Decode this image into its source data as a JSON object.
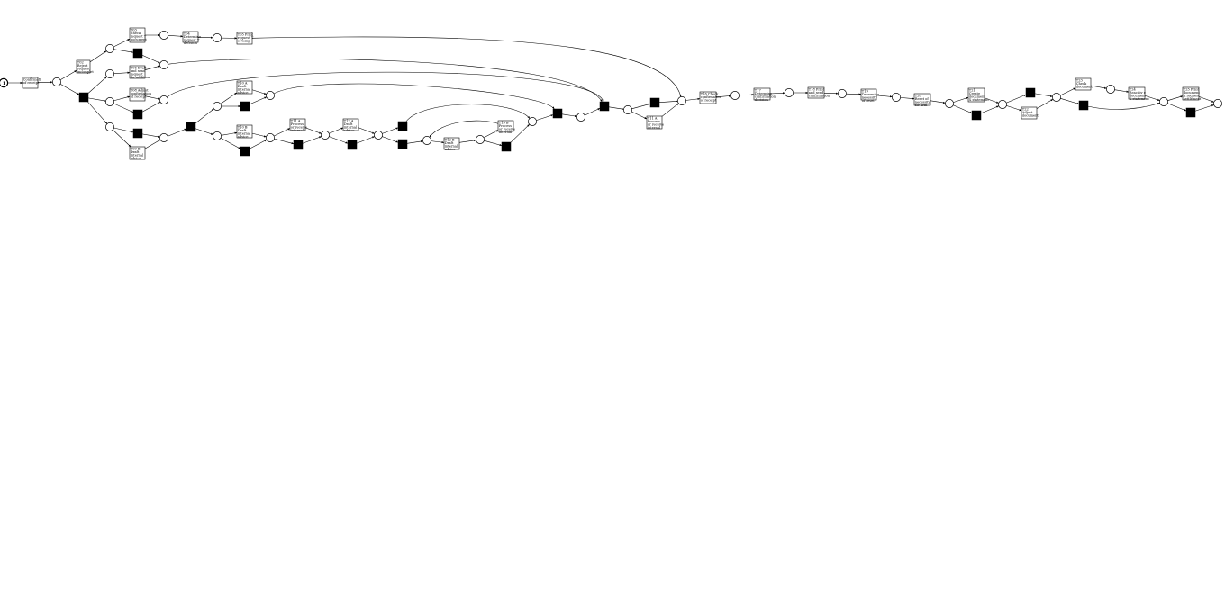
{
  "diagram": {
    "type": "petri-net",
    "token_count": "1",
    "transitions": [
      {
        "id": "t_start",
        "lines": [
          "Confirmati",
          "of receipt"
        ]
      },
      {
        "id": "t_reject",
        "lines": [
          "T02",
          "Reject",
          "request",
          "incomplet"
        ]
      },
      {
        "id": "t_check_t",
        "lines": [
          "T03",
          "Check",
          "request T",
          "document"
        ]
      },
      {
        "id": "t_det_t",
        "lines": [
          "T04",
          "Determine",
          "request T",
          "decision"
        ]
      },
      {
        "id": "t_print_t",
        "lines": [
          "T05 Print",
          "request T",
          "of temp"
        ]
      },
      {
        "id": "t_draft_a",
        "lines": [
          "T06 Draft",
          "and send",
          "request",
          "for addition"
        ]
      },
      {
        "id": "t_adjust_conf",
        "lines": [
          "T08 Adjust",
          "confirmation",
          "of receipt"
        ]
      },
      {
        "id": "t_draft_b",
        "lines": [
          "T09 B",
          "Draft",
          "internal",
          "advice"
        ]
      },
      {
        "id": "t_t10a",
        "lines": [
          "T10 A",
          "Draft",
          "internal",
          "advice"
        ]
      },
      {
        "id": "t_t10b",
        "lines": [
          "T10 B",
          "Draft",
          "internal",
          "advice"
        ]
      },
      {
        "id": "t_t11a",
        "lines": [
          "T11 A",
          "Process",
          "or receive",
          "internal"
        ]
      },
      {
        "id": "t_t12a",
        "lines": [
          "T12 A",
          "Draft",
          "internal",
          "advice"
        ]
      },
      {
        "id": "t_t13b",
        "lines": [
          "T13 B",
          "Process",
          "or receive",
          "internal"
        ]
      },
      {
        "id": "t_t12b",
        "lines": [
          "T12 B",
          "Draft",
          "internal",
          "advice"
        ]
      },
      {
        "id": "t_t11b",
        "lines": [
          "T11 A",
          "Process",
          "or receive",
          "internal"
        ]
      },
      {
        "id": "t_t16",
        "lines": [
          "T16 Check",
          "confirmation",
          "of receipt"
        ]
      },
      {
        "id": "t_t17",
        "lines": [
          "T17",
          "Determine",
          "confirmation",
          "decision"
        ]
      },
      {
        "id": "t_t18",
        "lines": [
          "T18 Print",
          "and send",
          "confirmation"
        ]
      },
      {
        "id": "t_t19",
        "lines": [
          "T19",
          "Determine",
          "necessity",
          "of reset"
        ]
      },
      {
        "id": "t_t20",
        "lines": [
          "T20",
          "Reset of",
          "necessity",
          "for arm"
        ]
      },
      {
        "id": "t_t21",
        "lines": [
          "T21",
          "Create",
          "document",
          "X statement"
        ]
      },
      {
        "id": "t_t22",
        "lines": [
          "T22",
          "Adjust",
          "document"
        ]
      },
      {
        "id": "t_t23",
        "lines": [
          "T23",
          "Check",
          "document"
        ]
      },
      {
        "id": "t_t24",
        "lines": [
          "T24",
          "Reacitiv e",
          "document",
          "X statement"
        ]
      },
      {
        "id": "t_t25",
        "lines": [
          "T25 Print",
          "document",
          "X request",
          "settlement"
        ]
      },
      {
        "id": "t_t15a",
        "lines": [
          "T15 A",
          "Process",
          "or receive",
          "internal"
        ]
      }
    ]
  }
}
